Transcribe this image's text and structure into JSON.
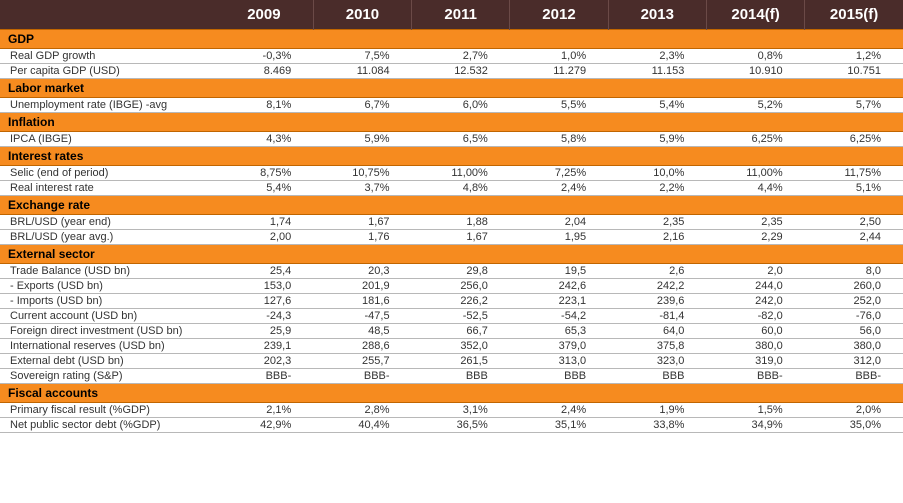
{
  "headers": [
    "",
    "2009",
    "2010",
    "2011",
    "2012",
    "2013",
    "2014(f)",
    "2015(f)"
  ],
  "sections": [
    {
      "title": "GDP",
      "rows": [
        {
          "label": "Real GDP growth",
          "vals": [
            "-0,3%",
            "7,5%",
            "2,7%",
            "1,0%",
            "2,3%",
            "0,8%",
            "1,2%"
          ]
        },
        {
          "label": "Per capita GDP (USD)",
          "vals": [
            "8.469",
            "11.084",
            "12.532",
            "11.279",
            "11.153",
            "10.910",
            "10.751"
          ]
        }
      ]
    },
    {
      "title": "Labor market",
      "rows": [
        {
          "label": "Unemployment rate (IBGE) -avg",
          "vals": [
            "8,1%",
            "6,7%",
            "6,0%",
            "5,5%",
            "5,4%",
            "5,2%",
            "5,7%"
          ]
        }
      ]
    },
    {
      "title": "Inflation",
      "rows": [
        {
          "label": "IPCA (IBGE)",
          "vals": [
            "4,3%",
            "5,9%",
            "6,5%",
            "5,8%",
            "5,9%",
            "6,25%",
            "6,25%"
          ]
        }
      ]
    },
    {
      "title": "Interest rates",
      "rows": [
        {
          "label": "Selic (end of period)",
          "vals": [
            "8,75%",
            "10,75%",
            "11,00%",
            "7,25%",
            "10,0%",
            "11,00%",
            "11,75%"
          ]
        },
        {
          "label": "Real interest rate",
          "vals": [
            "5,4%",
            "3,7%",
            "4,8%",
            "2,4%",
            "2,2%",
            "4,4%",
            "5,1%"
          ]
        }
      ]
    },
    {
      "title": "Exchange rate",
      "rows": [
        {
          "label": "BRL/USD (year end)",
          "vals": [
            "1,74",
            "1,67",
            "1,88",
            "2,04",
            "2,35",
            "2,35",
            "2,50"
          ]
        },
        {
          "label": "BRL/USD (year avg.)",
          "vals": [
            "2,00",
            "1,76",
            "1,67",
            "1,95",
            "2,16",
            "2,29",
            "2,44"
          ]
        }
      ]
    },
    {
      "title": "External sector",
      "rows": [
        {
          "label": "Trade Balance (USD bn)",
          "vals": [
            "25,4",
            "20,3",
            "29,8",
            "19,5",
            "2,6",
            "2,0",
            "8,0"
          ]
        },
        {
          "label": " - Exports (USD bn)",
          "vals": [
            "153,0",
            "201,9",
            "256,0",
            "242,6",
            "242,2",
            "244,0",
            "260,0"
          ]
        },
        {
          "label": " - Imports (USD bn)",
          "vals": [
            "127,6",
            "181,6",
            "226,2",
            "223,1",
            "239,6",
            "242,0",
            "252,0"
          ]
        },
        {
          "label": "Current account (USD bn)",
          "vals": [
            "-24,3",
            "-47,5",
            "-52,5",
            "-54,2",
            "-81,4",
            "-82,0",
            "-76,0"
          ]
        },
        {
          "label": "Foreign direct investment (USD bn)",
          "vals": [
            "25,9",
            "48,5",
            "66,7",
            "65,3",
            "64,0",
            "60,0",
            "56,0"
          ]
        },
        {
          "label": "International reserves (USD bn)",
          "vals": [
            "239,1",
            "288,6",
            "352,0",
            "379,0",
            "375,8",
            "380,0",
            "380,0"
          ]
        },
        {
          "label": "External debt (USD bn)",
          "vals": [
            "202,3",
            "255,7",
            "261,5",
            "313,0",
            "323,0",
            "319,0",
            "312,0"
          ]
        },
        {
          "label": "Sovereign rating (S&P)",
          "vals": [
            "BBB-",
            "BBB-",
            "BBB",
            "BBB",
            "BBB",
            "BBB-",
            "BBB-"
          ]
        }
      ]
    },
    {
      "title": "Fiscal accounts",
      "rows": [
        {
          "label": "Primary fiscal result (%GDP)",
          "vals": [
            "2,1%",
            "2,8%",
            "3,1%",
            "2,4%",
            "1,9%",
            "1,5%",
            "2,0%"
          ]
        },
        {
          "label": "Net public sector debt (%GDP)",
          "vals": [
            "42,9%",
            "40,4%",
            "36,5%",
            "35,1%",
            "33,8%",
            "34,9%",
            "35,0%"
          ]
        }
      ]
    }
  ],
  "colors": {
    "header_bg": "#4a2c2a",
    "section_bg": "#f68b1f",
    "row_border": "#b8b8b8"
  }
}
